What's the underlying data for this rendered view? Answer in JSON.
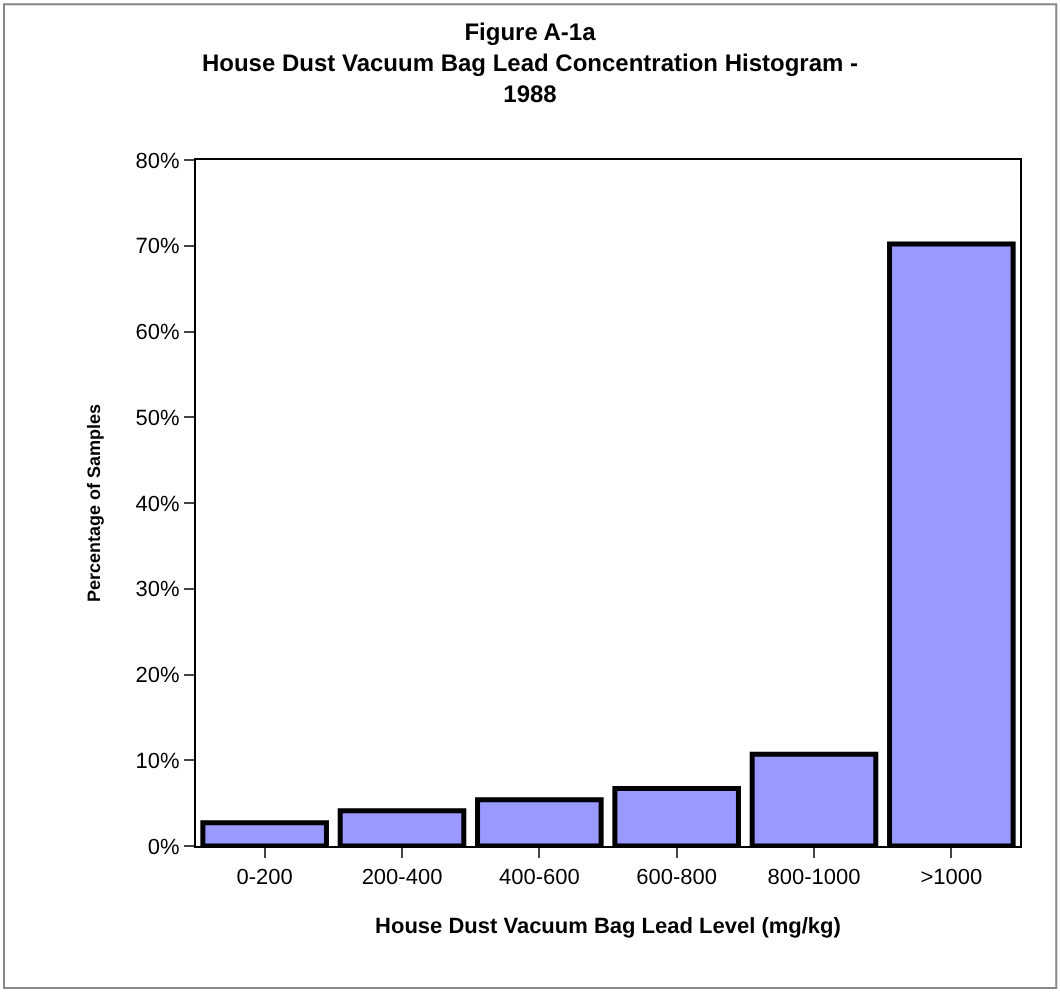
{
  "chart_data": {
    "type": "bar",
    "title": "Figure A-1a\nHouse Dust Vacuum Bag Lead Concentration Histogram -\n1988",
    "xlabel": "House Dust Vacuum Bag Lead Level (mg/kg)",
    "ylabel": "Percentage of Samples",
    "categories": [
      "0-200",
      "200-400",
      "400-600",
      "600-800",
      "800-1000",
      ">1000"
    ],
    "values": [
      2.7,
      4.1,
      5.4,
      6.7,
      10.7,
      70.2
    ],
    "color": "#9999ff",
    "ylim": [
      0,
      80
    ],
    "yticks": [
      {
        "value": 0,
        "label": "0%"
      },
      {
        "value": 10,
        "label": "10%"
      },
      {
        "value": 20,
        "label": "20%"
      },
      {
        "value": 30,
        "label": "30%"
      },
      {
        "value": 40,
        "label": "40%"
      },
      {
        "value": 50,
        "label": "50%"
      },
      {
        "value": 60,
        "label": "60%"
      },
      {
        "value": 70,
        "label": "70%"
      },
      {
        "value": 80,
        "label": "80%"
      }
    ]
  }
}
